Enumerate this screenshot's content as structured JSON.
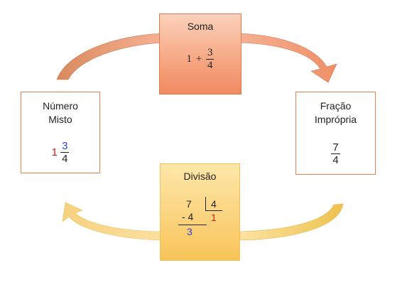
{
  "nodes": {
    "sum": {
      "title": "Soma",
      "whole": "1",
      "op": "+",
      "numerator": "3",
      "denominator": "4"
    },
    "mixed": {
      "title_line1": "Número",
      "title_line2": "Misto",
      "whole": "1",
      "numerator": "3",
      "denominator": "4"
    },
    "improper": {
      "title_line1": "Fração",
      "title_line2": "Imprópria",
      "numerator": "7",
      "denominator": "4"
    },
    "division": {
      "title": "Divisão",
      "dividend": "7",
      "divisor": "4",
      "subtrahend": "- 4",
      "quotient": "1",
      "remainder": "3"
    }
  },
  "colors": {
    "sum_fill": "#f6a985",
    "division_fill": "#fbd27a",
    "border": "#e8834f",
    "whole_red": "#d11a1a",
    "numerator_blue": "#2a48d8"
  }
}
